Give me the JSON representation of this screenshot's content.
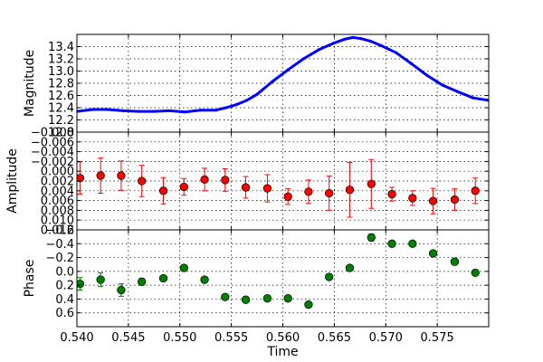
{
  "chart_data": [
    {
      "type": "line",
      "ylabel": "Magnitude",
      "xlabel": "",
      "xlim": [
        0.54,
        0.58
      ],
      "ylim": [
        13.6,
        12.0
      ],
      "y_inverted": true,
      "grid": true,
      "line_color": "#0000ff",
      "yticks": [
        12.0,
        12.2,
        12.4,
        12.6,
        12.8,
        13.0,
        13.2,
        13.4
      ],
      "ytick_labels": [
        "12.0",
        "12.2",
        "12.4",
        "12.6",
        "12.8",
        "13.0",
        "13.2",
        "13.4"
      ],
      "series": [
        {
          "x": [
            0.54,
            0.5415,
            0.543,
            0.5445,
            0.546,
            0.5475,
            0.549,
            0.5505,
            0.552,
            0.5535,
            0.5545,
            0.5555,
            0.5565,
            0.5575,
            0.559,
            0.5605,
            0.562,
            0.5635,
            0.565,
            0.566,
            0.5668,
            0.5676,
            0.5685,
            0.5695,
            0.571,
            0.5725,
            0.574,
            0.5755,
            0.577,
            0.5785,
            0.58
          ],
          "y": [
            12.34,
            12.37,
            12.37,
            12.35,
            12.34,
            12.34,
            12.35,
            12.33,
            12.36,
            12.36,
            12.4,
            12.45,
            12.52,
            12.62,
            12.83,
            13.02,
            13.2,
            13.35,
            13.46,
            13.52,
            13.55,
            13.53,
            13.49,
            13.42,
            13.3,
            13.12,
            12.93,
            12.77,
            12.66,
            12.56,
            12.52
          ]
        }
      ]
    },
    {
      "type": "scatter",
      "ylabel": "Amplitude",
      "xlabel": "",
      "xlim": [
        0.54,
        0.58
      ],
      "ylim": [
        -0.008,
        0.012
      ],
      "grid": true,
      "marker_color": "#ff0000",
      "yticks": [
        -0.008,
        -0.006,
        -0.004,
        -0.002,
        0.0,
        0.002,
        0.004,
        0.006,
        0.008,
        0.01,
        0.012
      ],
      "ytick_labels": [
        "−0.008",
        "−0.006",
        "−0.004",
        "−0.002",
        "0.000",
        "0.002",
        "0.004",
        "0.006",
        "0.008",
        "0.010",
        "0.012"
      ],
      "series": [
        {
          "x": [
            0.5403,
            0.5423,
            0.5443,
            0.5463,
            0.5484,
            0.5504,
            0.5524,
            0.5544,
            0.5564,
            0.5585,
            0.5605,
            0.5625,
            0.5645,
            0.5665,
            0.5686,
            0.5706,
            0.5726,
            0.5746,
            0.5767,
            0.5787
          ],
          "y": [
            0.0014,
            0.0009,
            0.0009,
            0.002,
            0.004,
            0.0032,
            0.0017,
            0.0018,
            0.0033,
            0.0035,
            0.0052,
            0.0042,
            0.0045,
            0.0038,
            0.0026,
            0.0047,
            0.0055,
            0.0061,
            0.0058,
            0.004
          ],
          "err": [
            0.0033,
            0.0036,
            0.003,
            0.0032,
            0.0027,
            0.0017,
            0.0023,
            0.0023,
            0.0022,
            0.0028,
            0.0016,
            0.0024,
            0.0035,
            0.0056,
            0.005,
            0.0014,
            0.0015,
            0.0026,
            0.0022,
            0.0026
          ]
        }
      ]
    },
    {
      "type": "scatter",
      "ylabel": "Phase",
      "xlabel": "Time",
      "xlim": [
        0.54,
        0.58
      ],
      "ylim": [
        -0.6,
        0.8
      ],
      "grid": true,
      "marker_color": "#008000",
      "yticks": [
        -0.6,
        -0.4,
        -0.2,
        0.0,
        0.2,
        0.4,
        0.6
      ],
      "ytick_labels": [
        "−0.6",
        "−0.4",
        "−0.2",
        "0.0",
        "0.2",
        "0.4",
        "0.6"
      ],
      "xticks": [
        0.54,
        0.545,
        0.55,
        0.555,
        0.56,
        0.565,
        0.57,
        0.575
      ],
      "xtick_labels": [
        "0.540",
        "0.545",
        "0.550",
        "0.555",
        "0.560",
        "0.565",
        "0.570",
        "0.575"
      ],
      "series": [
        {
          "x": [
            0.5403,
            0.5423,
            0.5443,
            0.5463,
            0.5484,
            0.5504,
            0.5524,
            0.5544,
            0.5564,
            0.5585,
            0.5605,
            0.5625,
            0.5645,
            0.5665,
            0.5686,
            0.5706,
            0.5726,
            0.5746,
            0.5767,
            0.5787
          ],
          "y": [
            0.18,
            0.12,
            0.27,
            0.15,
            0.1,
            -0.05,
            0.12,
            0.37,
            0.41,
            0.39,
            0.39,
            0.48,
            0.08,
            -0.05,
            -0.49,
            -0.4,
            -0.4,
            -0.26,
            -0.14,
            0.02
          ],
          "err": [
            0.09,
            0.1,
            0.09,
            0.05,
            0.03,
            0.02,
            0.04,
            0.04,
            0.03,
            0.03,
            0.03,
            0.03,
            0.03,
            0.04,
            0.05,
            0.03,
            0.03,
            0.03,
            0.03,
            0.03
          ]
        }
      ]
    }
  ]
}
